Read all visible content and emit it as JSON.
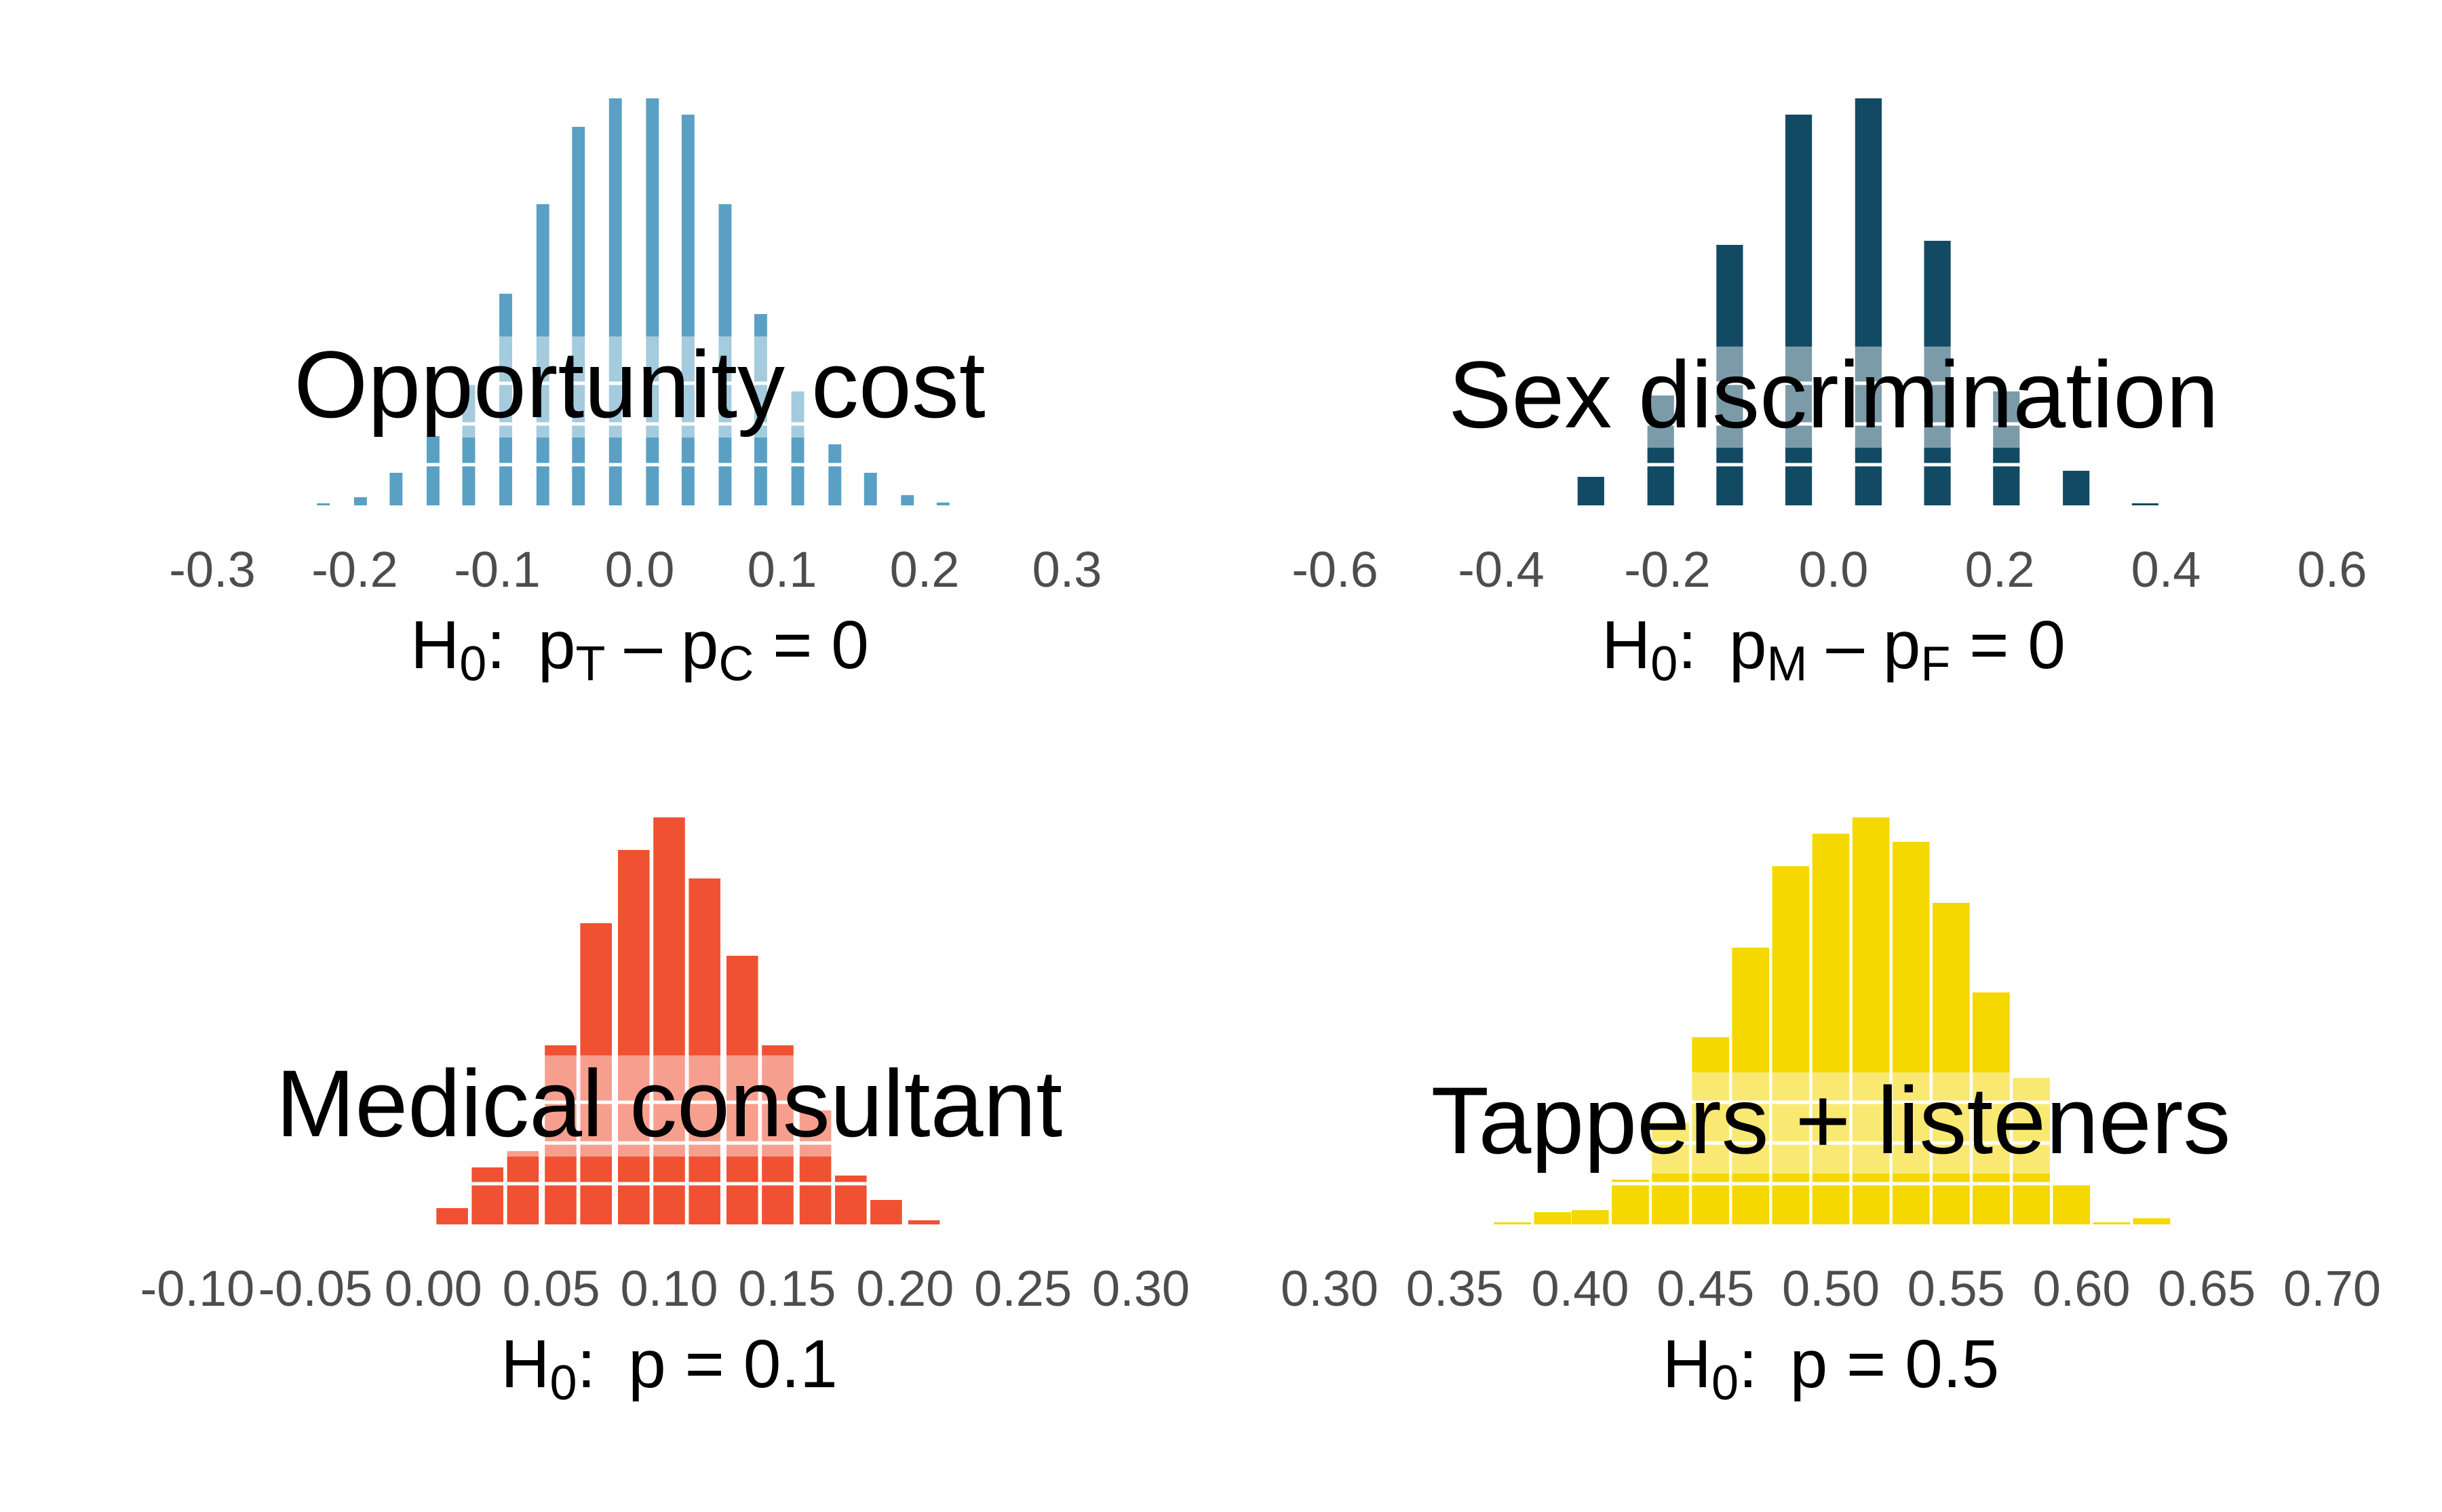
{
  "chart_data": [
    {
      "type": "bar",
      "title": "Opportunity cost",
      "xlabel": "H0: pT - pC = 0",
      "xlabel_parts": {
        "main": "H",
        "sub0": "0",
        "colon": ":",
        "p1": "p",
        "sub1": "T",
        "minus": "-",
        "p2": "p",
        "sub2": "C",
        "eq": "=",
        "rhs": "0"
      },
      "color": "#5aa0c4",
      "xlim": [
        -0.3,
        0.3
      ],
      "ylim": [
        0,
        1
      ],
      "ticks": [
        -0.3,
        -0.2,
        -0.1,
        0.0,
        0.1,
        0.2,
        0.3
      ],
      "tick_labels": [
        "-0.3",
        "-0.2",
        "-0.1",
        "0.0",
        "0.1",
        "0.2",
        "0.3"
      ],
      "bar_width": 0.009,
      "x": [
        -0.222,
        -0.196,
        -0.171,
        -0.145,
        -0.12,
        -0.094,
        -0.068,
        -0.043,
        -0.017,
        0.009,
        0.034,
        0.06,
        0.085,
        0.111,
        0.137,
        0.162,
        0.188,
        0.213
      ],
      "values": [
        0.005,
        0.02,
        0.08,
        0.17,
        0.3,
        0.52,
        0.74,
        0.93,
        1.0,
        1.0,
        0.96,
        0.74,
        0.47,
        0.28,
        0.15,
        0.08,
        0.025,
        0.007
      ]
    },
    {
      "type": "bar",
      "title": "Sex discrimination",
      "xlabel": "H0: pM - pF = 0",
      "xlabel_parts": {
        "main": "H",
        "sub0": "0",
        "colon": ":",
        "p1": "p",
        "sub1": "M",
        "minus": "-",
        "p2": "p",
        "sub2": "F",
        "eq": "=",
        "rhs": "0"
      },
      "color": "#124a63",
      "xlim": [
        -0.6,
        0.6
      ],
      "ylim": [
        0,
        1
      ],
      "ticks": [
        -0.6,
        -0.4,
        -0.2,
        0.0,
        0.2,
        0.4,
        0.6
      ],
      "tick_labels": [
        "-0.6",
        "-0.4",
        "-0.2",
        "0.0",
        "0.2",
        "0.4",
        "0.6"
      ],
      "bar_width": 0.032,
      "x": [
        -0.292,
        -0.208,
        -0.125,
        -0.042,
        0.042,
        0.125,
        0.208,
        0.292,
        0.375
      ],
      "values": [
        0.07,
        0.27,
        0.64,
        0.96,
        1.0,
        0.65,
        0.28,
        0.085,
        0.005
      ]
    },
    {
      "type": "bar",
      "title": "Medical consultant",
      "xlabel": "H0: p = 0.1",
      "xlabel_parts": {
        "main": "H",
        "sub0": "0",
        "colon": ":",
        "p1": "p",
        "eq": "=",
        "rhs": "0.1"
      },
      "color": "#f05133",
      "xlim": [
        -0.1,
        0.3
      ],
      "ylim": [
        0,
        1
      ],
      "ticks": [
        -0.1,
        -0.05,
        0.0,
        0.05,
        0.1,
        0.15,
        0.2,
        0.25,
        0.3
      ],
      "tick_labels": [
        "-0.10",
        "-0.05",
        "0.00",
        "0.05",
        "0.10",
        "0.15",
        "0.20",
        "0.25",
        "0.30"
      ],
      "bar_width": 0.0134,
      "x": [
        0.008,
        0.023,
        0.038,
        0.054,
        0.069,
        0.085,
        0.1,
        0.115,
        0.131,
        0.146,
        0.162,
        0.177,
        0.192,
        0.208
      ],
      "values": [
        0.04,
        0.14,
        0.18,
        0.44,
        0.74,
        0.92,
        1.0,
        0.85,
        0.66,
        0.44,
        0.28,
        0.12,
        0.06,
        0.01
      ]
    },
    {
      "type": "bar",
      "title": "Tappers + listeners",
      "xlabel": "H0: p = 0.5",
      "xlabel_parts": {
        "main": "H",
        "sub0": "0",
        "colon": ":",
        "p1": "p",
        "eq": "=",
        "rhs": "0.5"
      },
      "color": "#f5d800",
      "xlim": [
        0.3,
        0.7
      ],
      "ylim": [
        0,
        1
      ],
      "ticks": [
        0.3,
        0.35,
        0.4,
        0.45,
        0.5,
        0.55,
        0.6,
        0.65,
        0.7
      ],
      "tick_labels": [
        "0.30",
        "0.35",
        "0.40",
        "0.45",
        "0.50",
        "0.55",
        "0.60",
        "0.65",
        "0.70"
      ],
      "bar_width": 0.0148,
      "x": [
        0.373,
        0.389,
        0.404,
        0.42,
        0.436,
        0.452,
        0.468,
        0.484,
        0.5,
        0.516,
        0.532,
        0.548,
        0.564,
        0.58,
        0.596,
        0.612,
        0.628
      ],
      "values": [
        0.005,
        0.03,
        0.035,
        0.11,
        0.25,
        0.46,
        0.68,
        0.88,
        0.96,
        1.0,
        0.94,
        0.79,
        0.57,
        0.36,
        0.1,
        0.005,
        0.015
      ]
    }
  ]
}
